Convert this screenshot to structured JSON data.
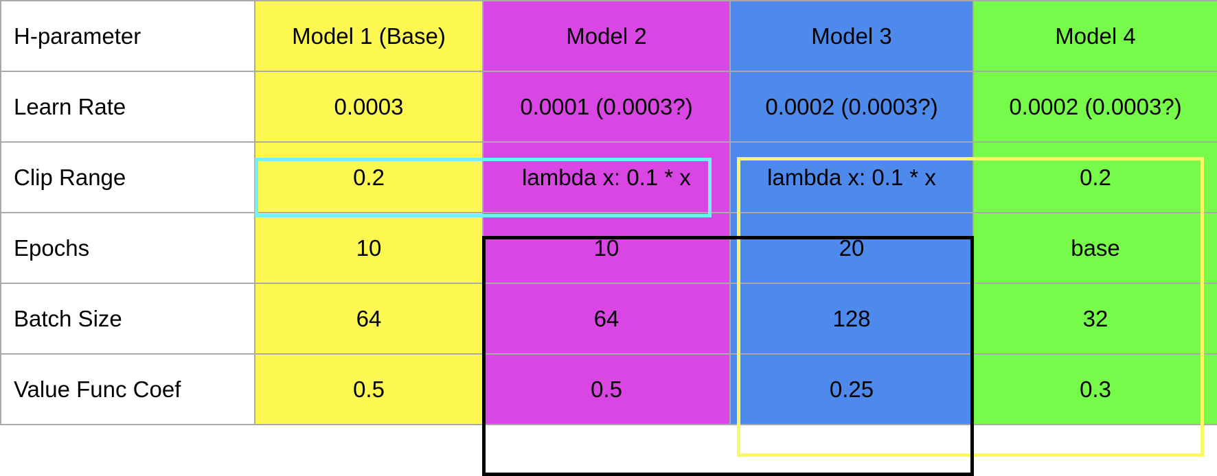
{
  "table": {
    "header": [
      "H-parameter",
      "Model 1 (Base)",
      "Model 2",
      "Model 3",
      "Model 4"
    ],
    "rows": [
      [
        "Learn Rate",
        "0.0003",
        "0.0001 (0.0003?)",
        "0.0002 (0.0003?)",
        "0.0002 (0.0003?)"
      ],
      [
        "Clip Range",
        "0.2",
        "lambda x: 0.1 * x",
        "lambda x: 0.1 * x",
        "0.2"
      ],
      [
        "Epochs",
        "10",
        "10",
        "20",
        "base"
      ],
      [
        "Batch Size",
        "64",
        "64",
        "128",
        "32"
      ],
      [
        "Value Func Coef",
        "0.5",
        "0.5",
        "0.25",
        "0.3"
      ]
    ]
  },
  "column_colors": {
    "model1": "#fdf851",
    "model2": "#d946e3",
    "model3": "#4e8aec",
    "model4": "#76fb4b"
  },
  "highlight_colors": {
    "cyan_box": "#6ff3f0",
    "yellow_box": "#fbf865",
    "black_box": "#000000"
  }
}
